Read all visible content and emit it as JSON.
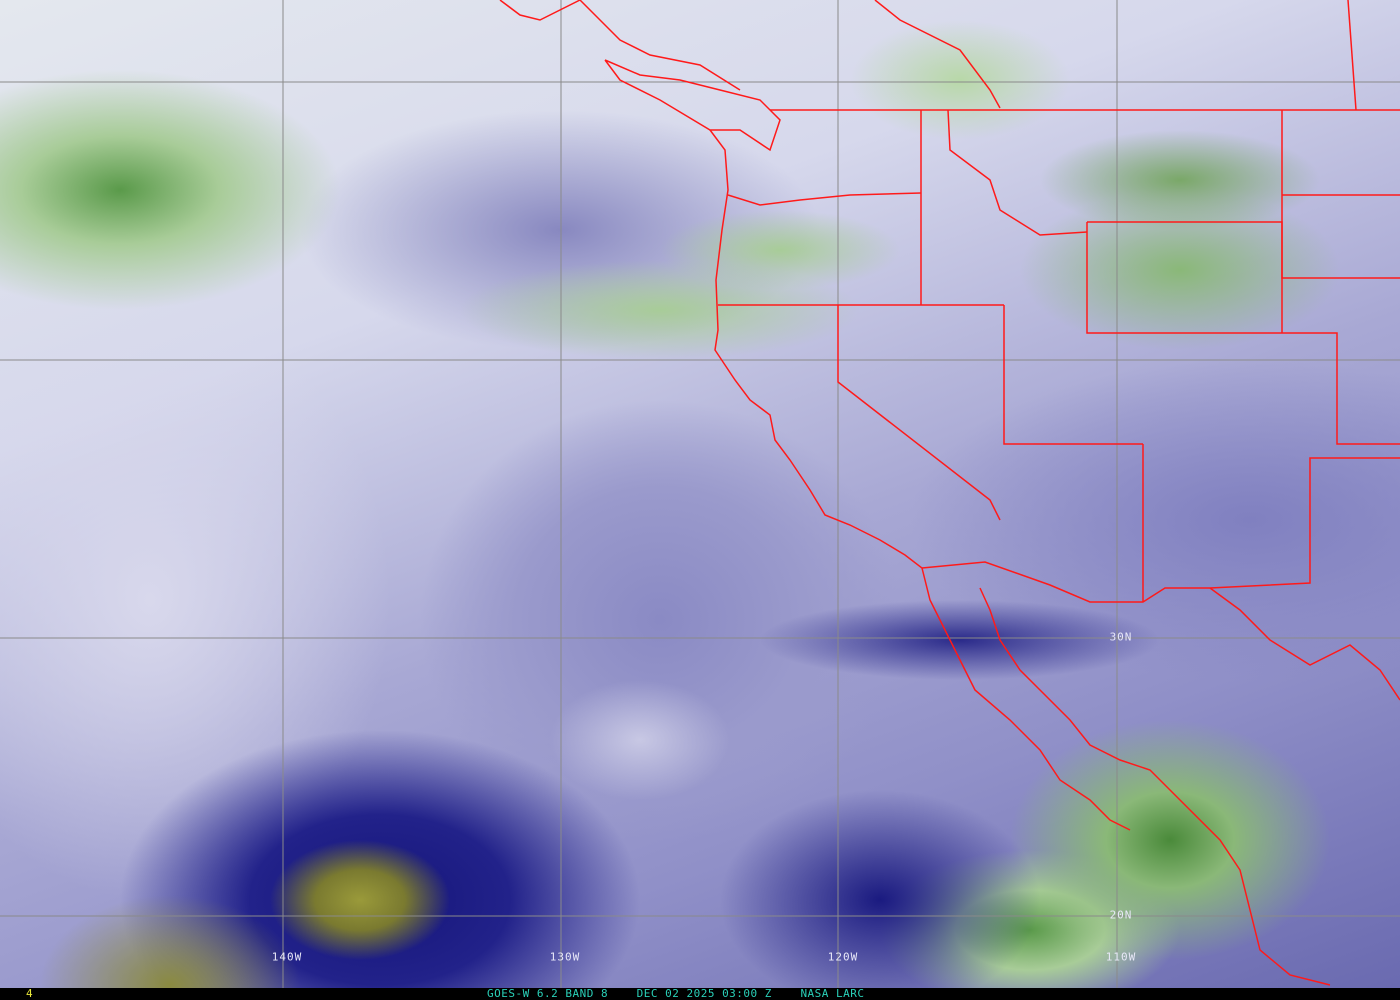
{
  "map": {
    "longitude_labels": [
      "140W",
      "130W",
      "120W",
      "110W"
    ],
    "latitude_labels": [
      "30N",
      "20N"
    ],
    "colors": {
      "coastline": "#ff1a1a",
      "grid": "#8a8a8a",
      "caption": "#2ad0b8",
      "frame_number": "#e6e63a"
    }
  },
  "status_bar": {
    "frame_number": "4",
    "satellite": "GOES-W 6.2 BAND 8",
    "datetime": "DEC 02 2025 03:00 Z",
    "source": "NASA LARC"
  }
}
